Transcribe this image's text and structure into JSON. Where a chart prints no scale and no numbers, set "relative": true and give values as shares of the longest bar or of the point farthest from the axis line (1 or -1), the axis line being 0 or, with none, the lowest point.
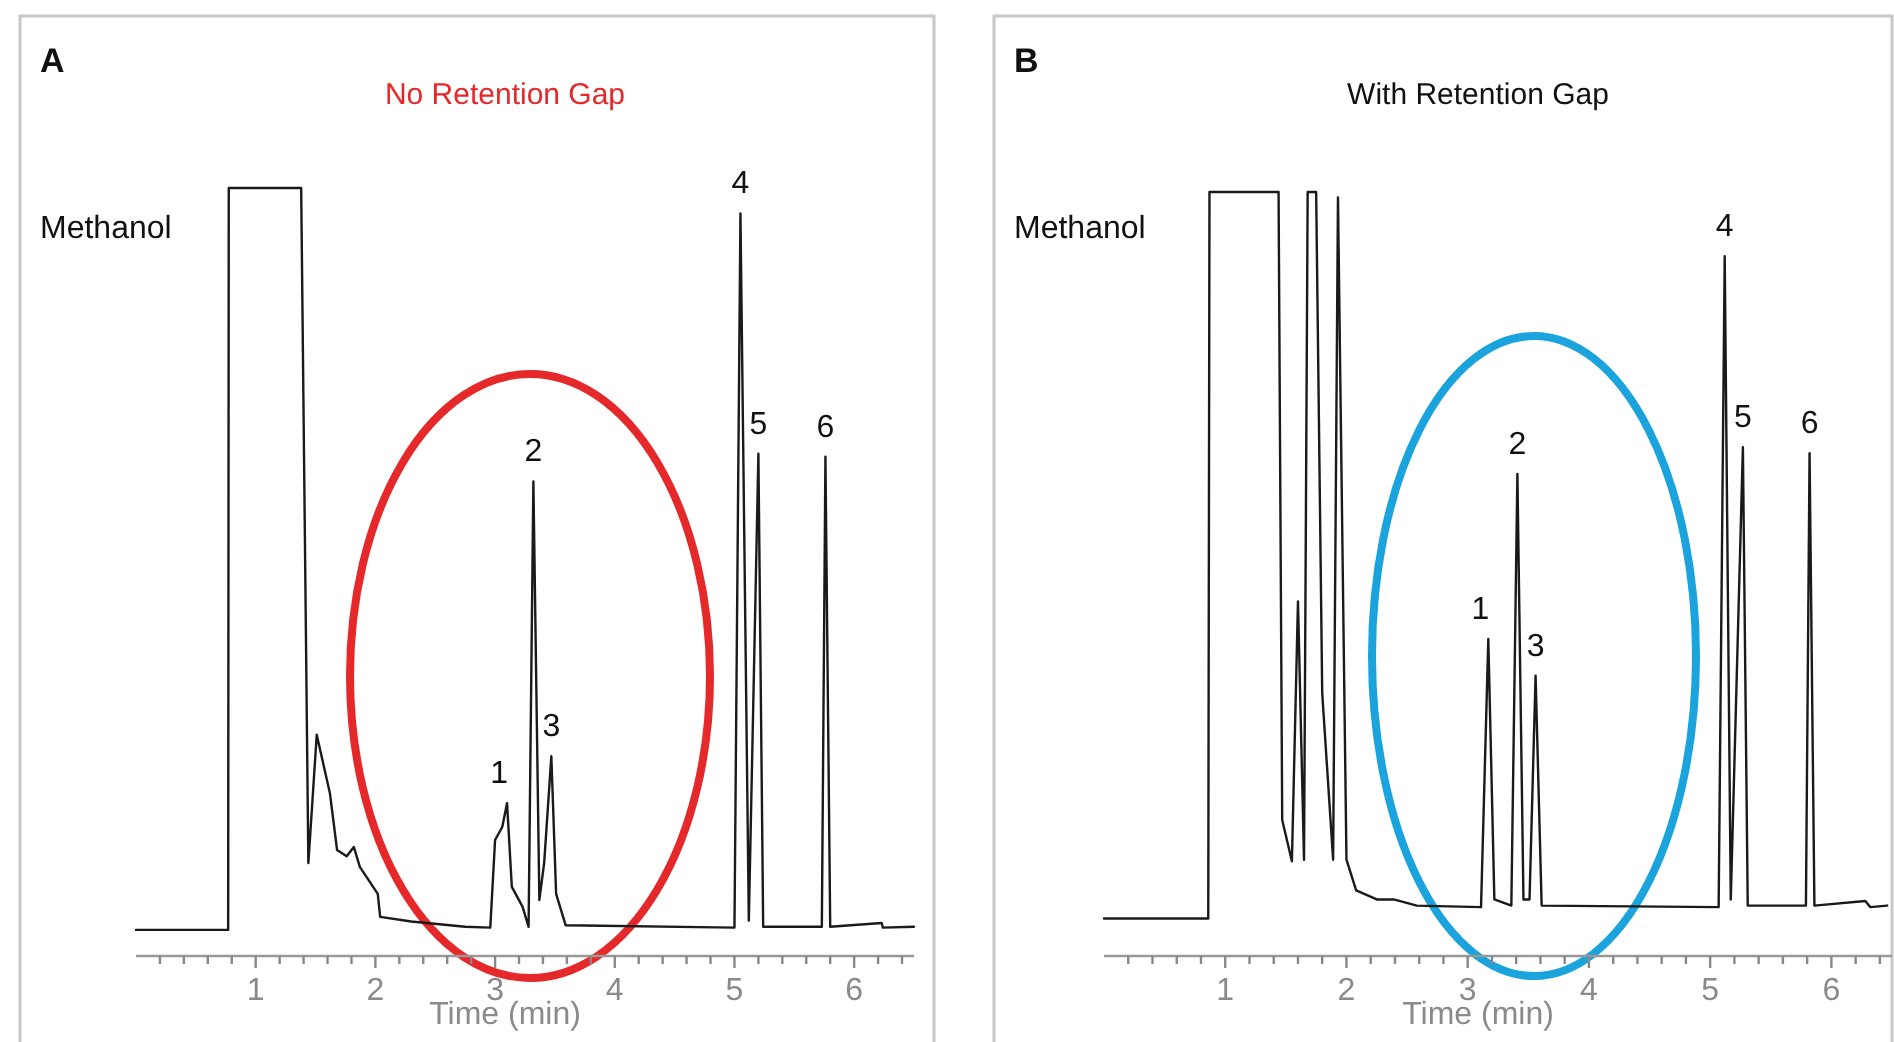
{
  "chart_data": [
    {
      "type": "line",
      "title": "A",
      "subtitle": "No Retention Gap",
      "xlabel": "Time (min)",
      "relative": true,
      "xlim": [
        0,
        6.5
      ],
      "xticks": [
        {
          "value": 0.2,
          "label": null
        },
        {
          "value": 0.4,
          "label": null
        },
        {
          "value": 0.6,
          "label": null
        },
        {
          "value": 0.8,
          "label": null
        },
        1,
        {
          "value": 1.2,
          "label": null
        },
        {
          "value": 1.4,
          "label": null
        },
        {
          "value": 1.6,
          "label": null
        },
        {
          "value": 1.8,
          "label": null
        },
        2,
        {
          "value": 2.2,
          "label": null
        },
        {
          "value": 2.4,
          "label": null
        },
        {
          "value": 2.6,
          "label": null
        },
        {
          "value": 2.8,
          "label": null
        },
        3,
        {
          "value": 3.2,
          "label": null
        },
        {
          "value": 3.4,
          "label": null
        },
        {
          "value": 3.6,
          "label": null
        },
        {
          "value": 3.8,
          "label": null
        },
        4,
        {
          "value": 4.2,
          "label": null
        },
        {
          "value": 4.4,
          "label": null
        },
        {
          "value": 4.6,
          "label": null
        },
        {
          "value": 4.8,
          "label": null
        },
        5,
        {
          "value": 5.2,
          "label": null
        },
        {
          "value": 5.4,
          "label": null
        },
        {
          "value": 5.6,
          "label": null
        },
        {
          "value": 5.8,
          "label": null
        },
        6,
        {
          "value": 6.2,
          "label": null
        },
        {
          "value": 6.4,
          "label": null
        }
      ],
      "series": [
        {
          "color": "#1a1a1a",
          "x": [
            0,
            0.77,
            0.775,
            1.38,
            1.44,
            1.51,
            1.62,
            1.68,
            1.76,
            1.82,
            1.87,
            2.02,
            2.04,
            2.3,
            2.75,
            2.96,
            3.0,
            3.06,
            3.1,
            3.14,
            3.23,
            3.28,
            3.32,
            3.37,
            3.41,
            3.47,
            3.51,
            3.59,
            5.0,
            5.05,
            5.12,
            5.2,
            5.24,
            5.73,
            5.76,
            5.8,
            6.23,
            6.24,
            6.5
          ],
          "values": [
            0.034,
            0.034,
            1,
            1,
            0.121,
            0.288,
            0.212,
            0.138,
            0.13,
            0.142,
            0.116,
            0.081,
            0.051,
            0.045,
            0.038,
            0.037,
            0.151,
            0.168,
            0.199,
            0.09,
            0.064,
            0.038,
            0.618,
            0.073,
            0.121,
            0.26,
            0.081,
            0.04,
            0.037,
            0.967,
            0.046,
            0.654,
            0.038,
            0.038,
            0.65,
            0.038,
            0.043,
            0.037,
            0.038
          ]
        }
      ],
      "annotations": [
        "Methanol",
        {
          "text": "1",
          "x": 3.1,
          "y": 0.199
        },
        {
          "text": "2",
          "x": 3.32,
          "y": 0.618
        },
        {
          "text": "3",
          "x": 3.47,
          "y": 0.26
        },
        {
          "text": "4",
          "x": 5.05,
          "y": 0.967
        },
        {
          "text": "5",
          "x": 5.2,
          "y": 0.654
        },
        {
          "text": "6",
          "x": 5.76,
          "y": 0.65
        }
      ]
    },
    {
      "type": "line",
      "title": "B",
      "subtitle": "With Retention Gap",
      "xlabel": "Time (min)",
      "relative": true,
      "xlim": [
        0,
        6.5
      ],
      "xticks": [
        {
          "value": 0.2,
          "label": null
        },
        {
          "value": 0.4,
          "label": null
        },
        {
          "value": 0.6,
          "label": null
        },
        {
          "value": 0.8,
          "label": null
        },
        1,
        {
          "value": 1.2,
          "label": null
        },
        {
          "value": 1.4,
          "label": null
        },
        {
          "value": 1.6,
          "label": null
        },
        {
          "value": 1.8,
          "label": null
        },
        2,
        {
          "value": 2.2,
          "label": null
        },
        {
          "value": 2.4,
          "label": null
        },
        {
          "value": 2.6,
          "label": null
        },
        {
          "value": 2.8,
          "label": null
        },
        3,
        {
          "value": 3.2,
          "label": null
        },
        {
          "value": 3.4,
          "label": null
        },
        {
          "value": 3.6,
          "label": null
        },
        {
          "value": 3.8,
          "label": null
        },
        4,
        {
          "value": 4.2,
          "label": null
        },
        {
          "value": 4.4,
          "label": null
        },
        {
          "value": 4.6,
          "label": null
        },
        {
          "value": 4.8,
          "label": null
        },
        5,
        {
          "value": 5.2,
          "label": null
        },
        {
          "value": 5.4,
          "label": null
        },
        {
          "value": 5.6,
          "label": null
        },
        {
          "value": 5.8,
          "label": null
        },
        6,
        {
          "value": 6.2,
          "label": null
        },
        {
          "value": 6.4,
          "label": null
        }
      ],
      "series": [
        {
          "color": "#1a1a1a",
          "x": [
            0,
            0.86,
            0.87,
            1.44,
            1.47,
            1.55,
            1.6,
            1.65,
            1.68,
            1.75,
            1.8,
            1.89,
            1.93,
            2.0,
            2.08,
            2.25,
            2.39,
            2.58,
            3.11,
            3.17,
            3.22,
            3.36,
            3.41,
            3.46,
            3.51,
            3.56,
            3.61,
            5.07,
            5.12,
            5.17,
            5.27,
            5.31,
            5.79,
            5.82,
            5.86,
            6.28,
            6.32,
            6.46
          ],
          "values": [
            0.049,
            0.049,
            1,
            1,
            0.178,
            0.124,
            0.464,
            0.126,
            1,
            1,
            0.344,
            0.126,
            0.993,
            0.126,
            0.086,
            0.074,
            0.074,
            0.066,
            0.064,
            0.415,
            0.074,
            0.066,
            0.631,
            0.074,
            0.074,
            0.367,
            0.066,
            0.064,
            0.916,
            0.074,
            0.666,
            0.066,
            0.066,
            0.658,
            0.066,
            0.072,
            0.064,
            0.066
          ]
        }
      ],
      "annotations": [
        "Methanol",
        {
          "text": "1",
          "x": 3.17,
          "y": 0.415
        },
        {
          "text": "2",
          "x": 3.41,
          "y": 0.631
        },
        {
          "text": "3",
          "x": 3.56,
          "y": 0.367
        },
        {
          "text": "4",
          "x": 5.12,
          "y": 0.916
        },
        {
          "text": "5",
          "x": 5.27,
          "y": 0.666
        },
        {
          "text": "6",
          "x": 5.82,
          "y": 0.658
        }
      ]
    }
  ]
}
